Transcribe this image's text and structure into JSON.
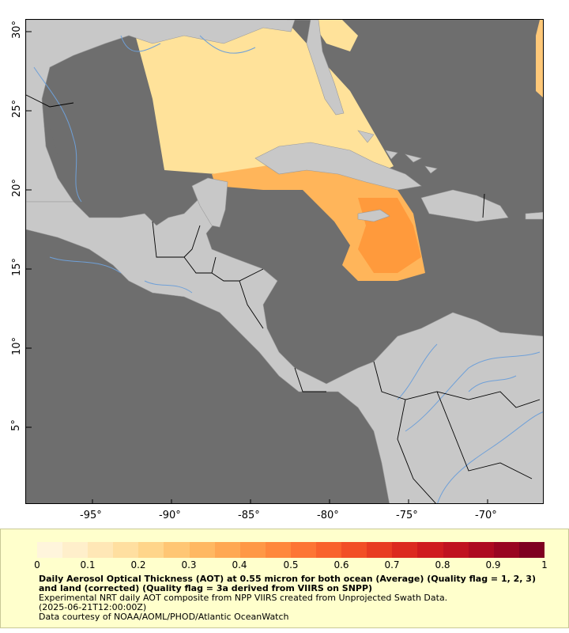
{
  "map": {
    "x_ticks": [
      "-95°",
      "-90°",
      "-85°",
      "-80°",
      "-75°",
      "-70°"
    ],
    "y_ticks": [
      "30°",
      "25°",
      "20°",
      "15°",
      "10°",
      "5°"
    ],
    "lon_range": [
      -99,
      -66.3
    ],
    "lat_range": [
      0.2,
      30.6
    ]
  },
  "colors": {
    "ocean": "#6e6e6e",
    "land": "#c8c8c8",
    "rivers": "#6fa0d8",
    "borders": "#000000"
  },
  "legend": {
    "ticks": [
      "0",
      "0.1",
      "0.2",
      "0.3",
      "0.4",
      "0.5",
      "0.6",
      "0.7",
      "0.8",
      "0.9",
      "1"
    ],
    "colors": [
      "#fff5dc",
      "#ffefcb",
      "#ffe7b6",
      "#ffdfa0",
      "#ffd58a",
      "#ffc674",
      "#ffb862",
      "#ffa853",
      "#ff9846",
      "#ff883c",
      "#fd7534",
      "#f9622c",
      "#f24f26",
      "#e83c22",
      "#dc2a1f",
      "#cf1b1e",
      "#c0121f",
      "#ae0a20",
      "#990521",
      "#7f0020"
    ],
    "title": "Daily Aerosol Optical Thickness (AOT) at 0.55 micron for both ocean (Average) (Quality flag = 1, 2, 3) and land (corrected) (Quality flag = 3a derived from VIIRS on SNPP)",
    "line2": "Experimental NRT daily AOT composite from NPP VIIRS created from Unprojected Swath Data.",
    "line3": "(2025-06-21T12:00:00Z)",
    "line4": "Data courtesy of NOAA/AOML/PHOD/Atlantic OceanWatch"
  }
}
